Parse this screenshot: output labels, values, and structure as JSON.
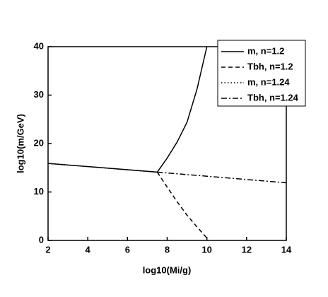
{
  "chart_data": {
    "type": "line",
    "xlabel": "log10(Mi/g)",
    "ylabel": "log10(m/GeV)",
    "xlim": [
      2,
      14
    ],
    "xticks": [
      2,
      4,
      6,
      8,
      10,
      12,
      14
    ],
    "ylim": [
      0,
      40
    ],
    "yticks": [
      0,
      10,
      20,
      30,
      40
    ],
    "legend": "upper right",
    "series": [
      {
        "name": "m,  n=1.2",
        "color": "#000000",
        "style": "solid",
        "x": [
          2,
          7.5,
          8,
          8.5,
          9,
          9.5,
          10
        ],
        "values": [
          15.9,
          14.1,
          17,
          20.3,
          24.4,
          31.2,
          40
        ]
      },
      {
        "name": "Tbh, n=1.2",
        "color": "#000000",
        "style": "dashed",
        "x": [
          7.5,
          8,
          8.5,
          9,
          9.5,
          10
        ],
        "values": [
          14.1,
          11,
          8,
          5.2,
          2.8,
          0.5
        ]
      },
      {
        "name": "m,   n=1.24",
        "color": "#000000",
        "style": "dotted",
        "x": [
          2,
          7.5
        ],
        "values": [
          15.9,
          14.1
        ]
      },
      {
        "name": "Tbh,  n=1.24",
        "color": "#000000",
        "style": "dashdot",
        "x": [
          7.5,
          14
        ],
        "values": [
          14.1,
          11.9
        ]
      }
    ]
  }
}
